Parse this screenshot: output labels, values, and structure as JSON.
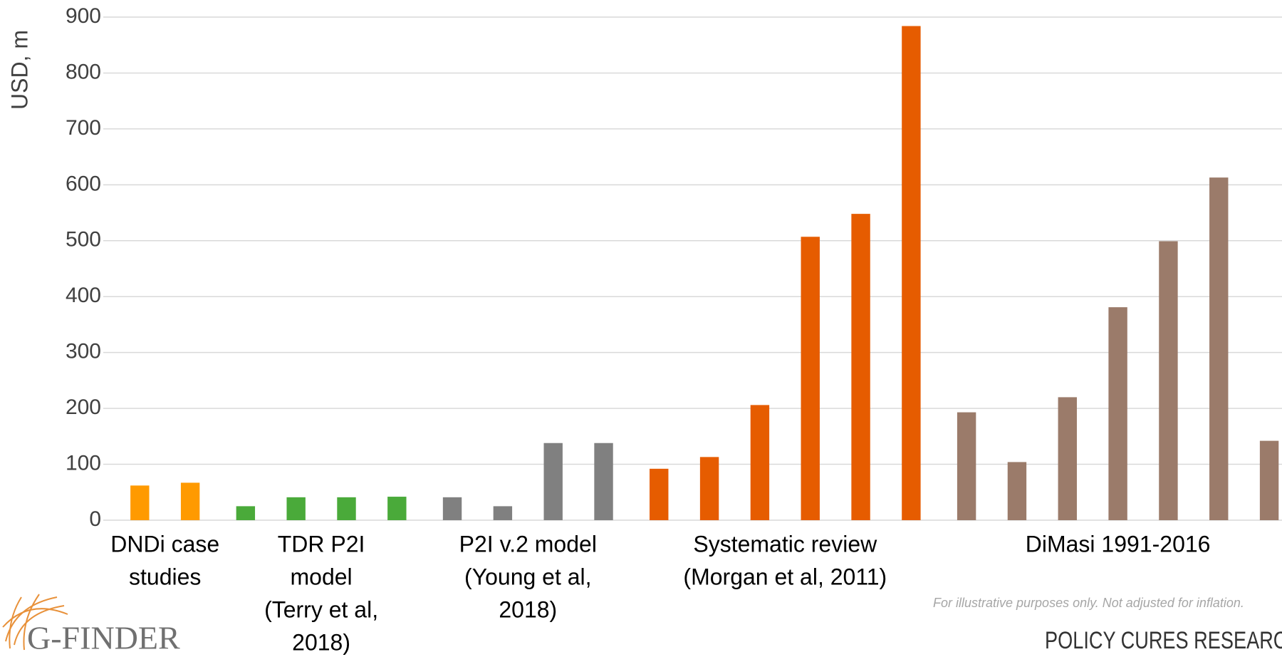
{
  "chart_data": {
    "type": "bar",
    "y_label": "USD, m",
    "ylim": [
      0,
      900
    ],
    "yticks": [
      0,
      100,
      200,
      300,
      400,
      500,
      600,
      700,
      800,
      900
    ],
    "grid": true,
    "groups": [
      {
        "label": [
          "DNDi case",
          "studies"
        ],
        "color": "#ff9a00",
        "values": [
          62,
          67
        ]
      },
      {
        "label": [
          "TDR P2I",
          "model",
          "(Terry et al,",
          "2018)"
        ],
        "color": "#4aaa3a",
        "values": [
          25,
          41,
          41,
          42
        ]
      },
      {
        "label": [
          "P2I v.2 model",
          "(Young et al,",
          "2018)"
        ],
        "color": "#808080",
        "values": [
          41,
          25,
          138,
          138
        ]
      },
      {
        "label": [
          "Systematic review",
          "(Morgan et al, 2011)"
        ],
        "color": "#e65c00",
        "values": [
          92,
          113,
          206,
          507,
          548,
          884
        ]
      },
      {
        "label": [
          "DiMasi 1991-2016"
        ],
        "color": "#9b7b6a",
        "values": [
          193,
          104,
          220,
          381,
          499,
          613,
          142
        ]
      }
    ],
    "note": "For illustrative purposes only. Not adjusted for inflation.",
    "brand_left": "G-FINDER",
    "brand_right": "POLICY CURES RESEARCH"
  }
}
